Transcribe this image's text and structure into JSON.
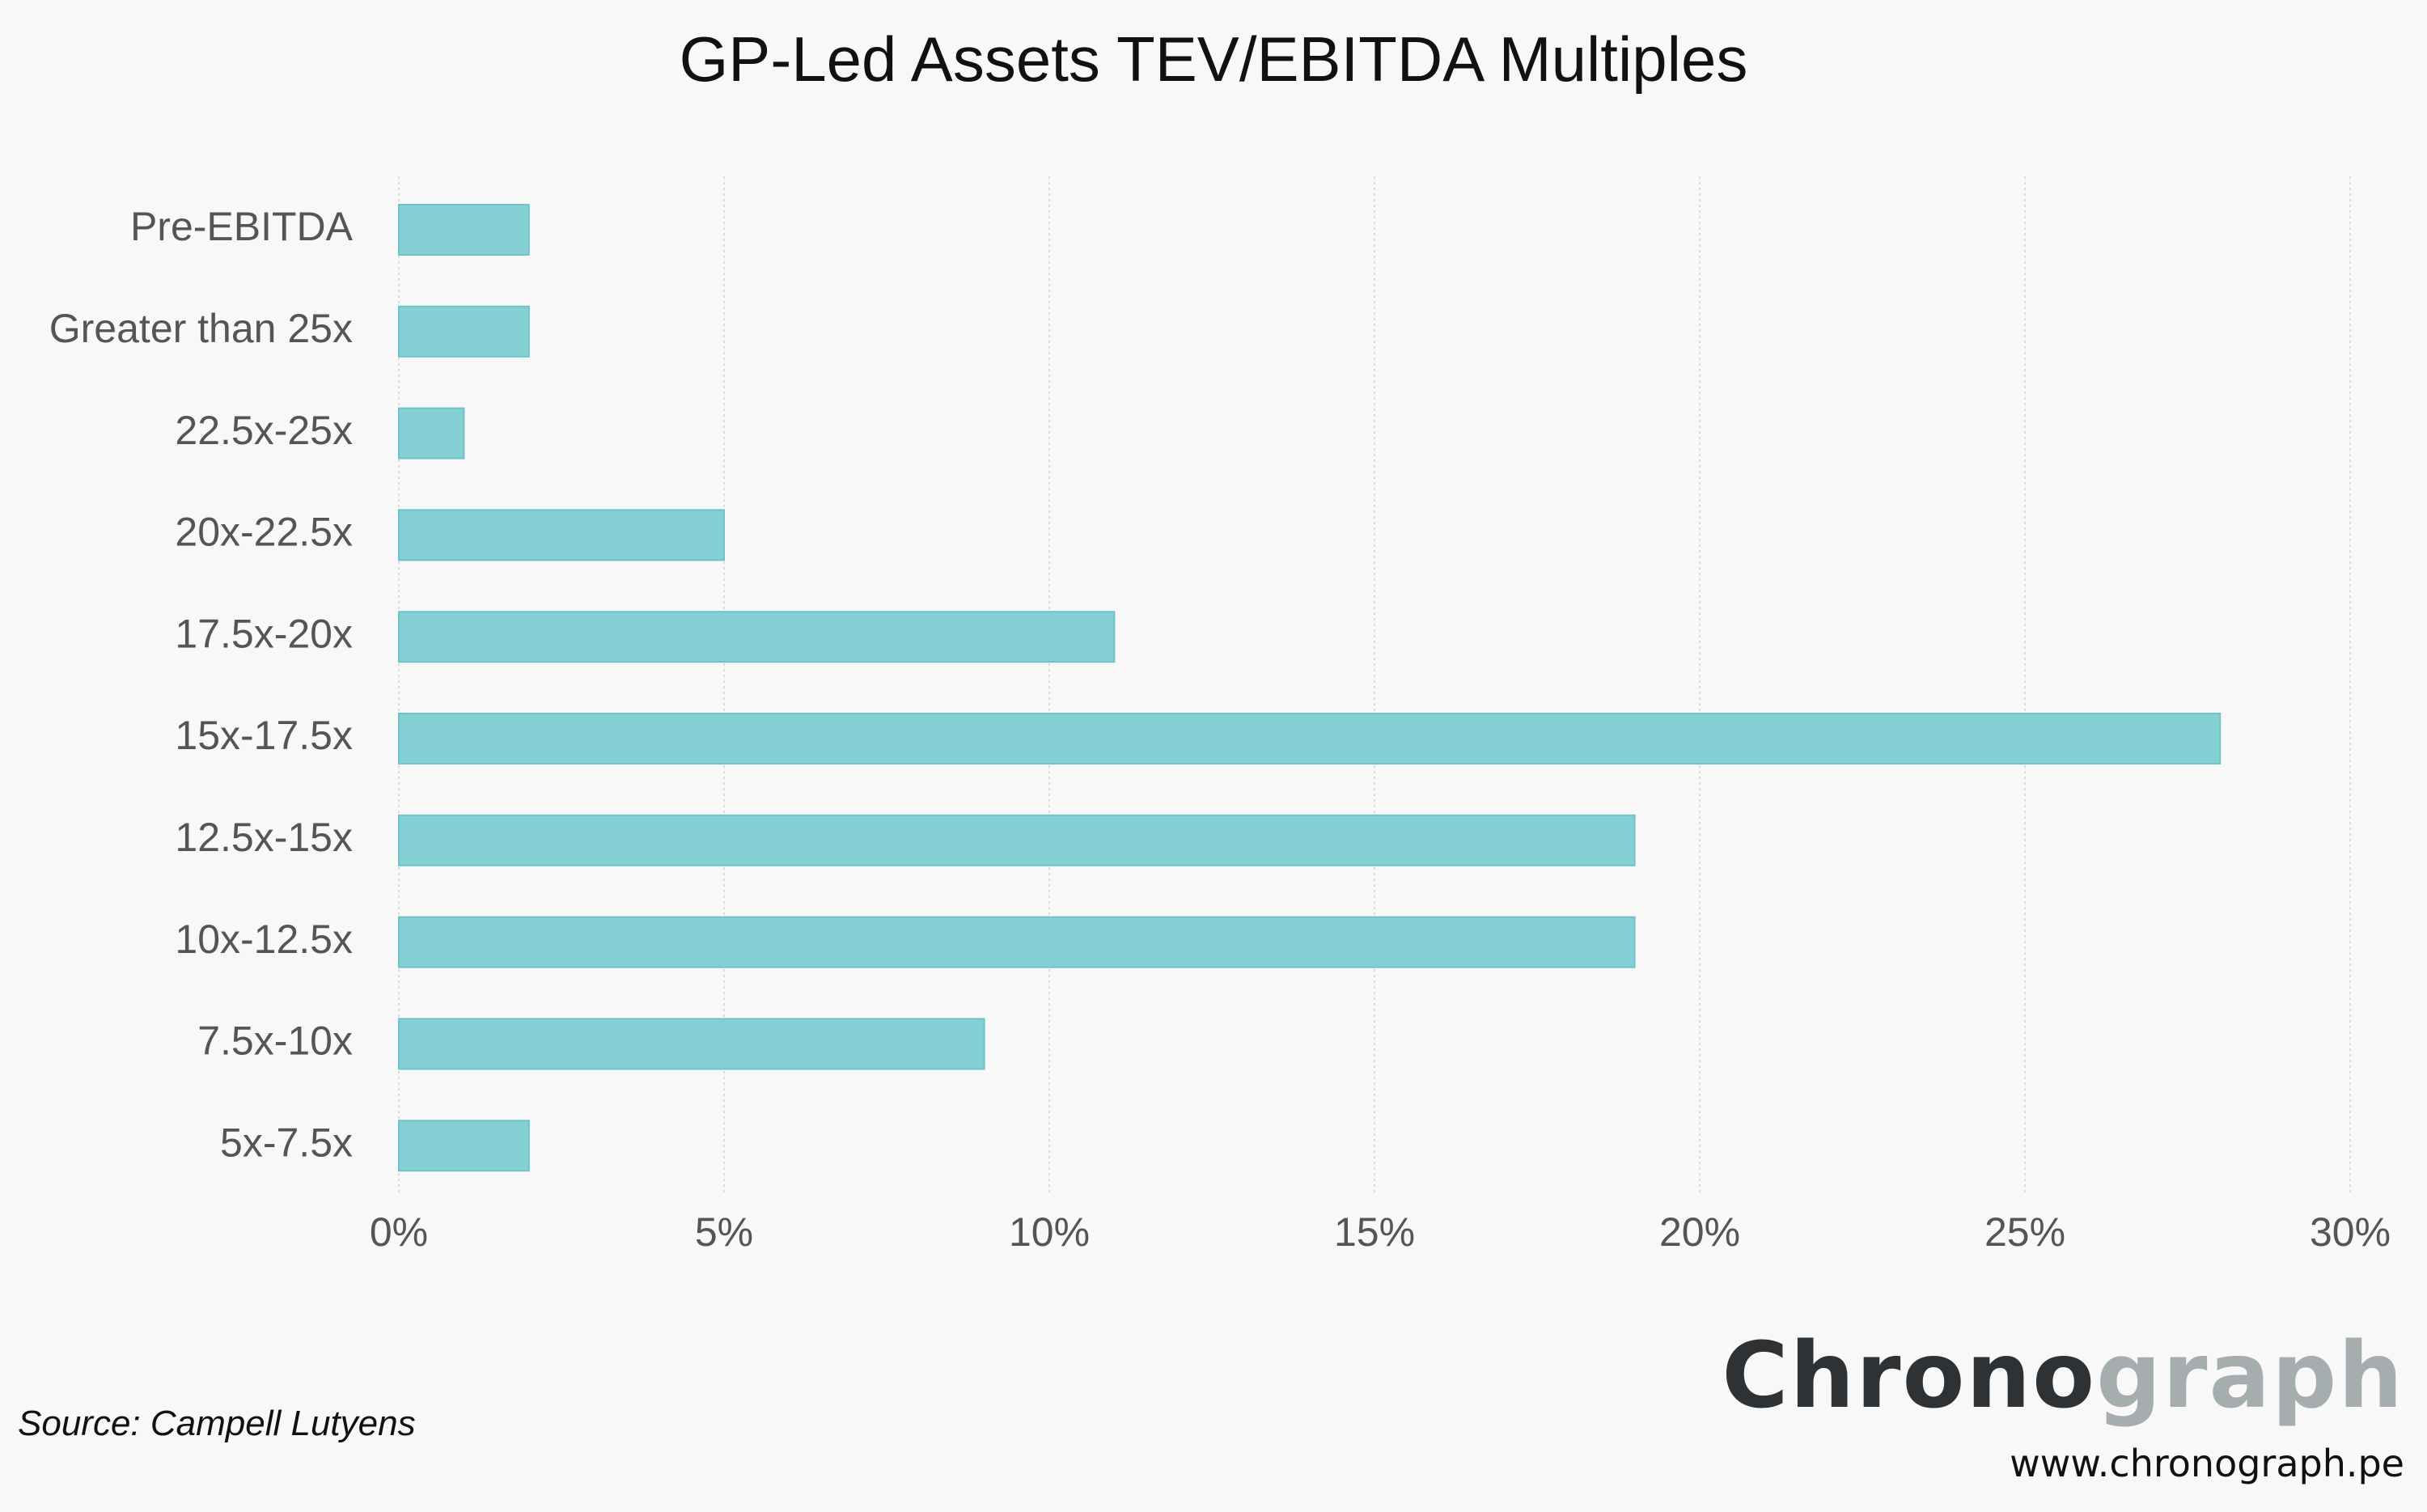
{
  "chart_data": {
    "type": "bar",
    "orientation": "horizontal",
    "title": "GP-Led Assets TEV/EBITDA Multiples",
    "categories": [
      "Pre-EBITDA",
      "Greater than 25x",
      "22.5x-25x",
      "20x-22.5x",
      "17.5x-20x",
      "15x-17.5x",
      "12.5x-15x",
      "10x-12.5x",
      "7.5x-10x",
      "5x-7.5x"
    ],
    "values": [
      2,
      2,
      1,
      5,
      11,
      28,
      19,
      19,
      9,
      2
    ],
    "x_ticks": [
      0,
      5,
      10,
      15,
      20,
      25,
      30
    ],
    "x_tick_labels": [
      "0%",
      "5%",
      "10%",
      "15%",
      "20%",
      "25%",
      "30%"
    ],
    "xlim": [
      0,
      30
    ],
    "grid": "vertical",
    "bar_color": "#84d0d5",
    "bar_edge_color": "#6fc3c8",
    "grid_color": "#dcdcdc",
    "xlabel": "",
    "ylabel": ""
  },
  "source": "Source: Campell Lutyens",
  "brand": {
    "dark_part": "Chrono",
    "light_part": "graph",
    "website": "www.chronograph.pe"
  }
}
